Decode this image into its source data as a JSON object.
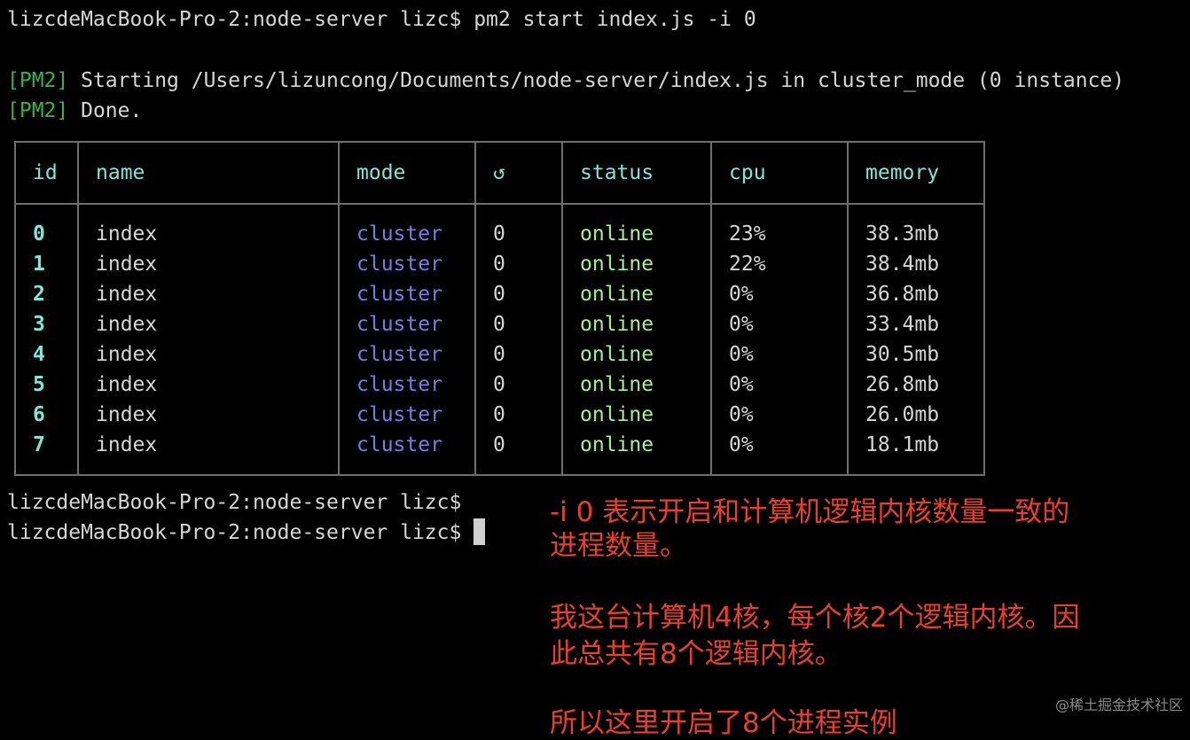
{
  "terminal": {
    "command_line": "lizcdeMacBook-Pro-2:node-server lizc$ pm2 start index.js -i 0",
    "pm2_tag": "[PM2]",
    "output": [
      "Starting /Users/lizuncong/Documents/node-server/index.js in cluster_mode (0 instance)",
      "Done."
    ],
    "prompts": [
      "lizcdeMacBook-Pro-2:node-server lizc$",
      "lizcdeMacBook-Pro-2:node-server lizc$ "
    ]
  },
  "table": {
    "headers": [
      "id",
      "name",
      "mode",
      "↺",
      "status",
      "cpu",
      "memory"
    ],
    "rows": [
      [
        "0",
        "index",
        "cluster",
        "0",
        "online",
        "23%",
        "38.3mb"
      ],
      [
        "1",
        "index",
        "cluster",
        "0",
        "online",
        "22%",
        "38.4mb"
      ],
      [
        "2",
        "index",
        "cluster",
        "0",
        "online",
        "0%",
        "36.8mb"
      ],
      [
        "3",
        "index",
        "cluster",
        "0",
        "online",
        "0%",
        "33.4mb"
      ],
      [
        "4",
        "index",
        "cluster",
        "0",
        "online",
        "0%",
        "30.5mb"
      ],
      [
        "5",
        "index",
        "cluster",
        "0",
        "online",
        "0%",
        "26.8mb"
      ],
      [
        "6",
        "index",
        "cluster",
        "0",
        "online",
        "0%",
        "26.0mb"
      ],
      [
        "7",
        "index",
        "cluster",
        "0",
        "online",
        "0%",
        "18.1mb"
      ]
    ]
  },
  "annotation": {
    "lines": [
      "-i 0 表示开启和计算机逻辑内核数量一致的",
      "进程数量。",
      "我这台计算机4核，每个核2个逻辑内核。因",
      "此总共有8个逻辑内核。",
      "所以这里开启了8个进程实例"
    ]
  },
  "watermark": "@稀土掘金技术社区",
  "colors": {
    "pm2": "#3dae4c",
    "header": "#7fe6dc",
    "mode": "#7b7be6",
    "status": "#a6f28a",
    "annotation": "#e8402a"
  }
}
